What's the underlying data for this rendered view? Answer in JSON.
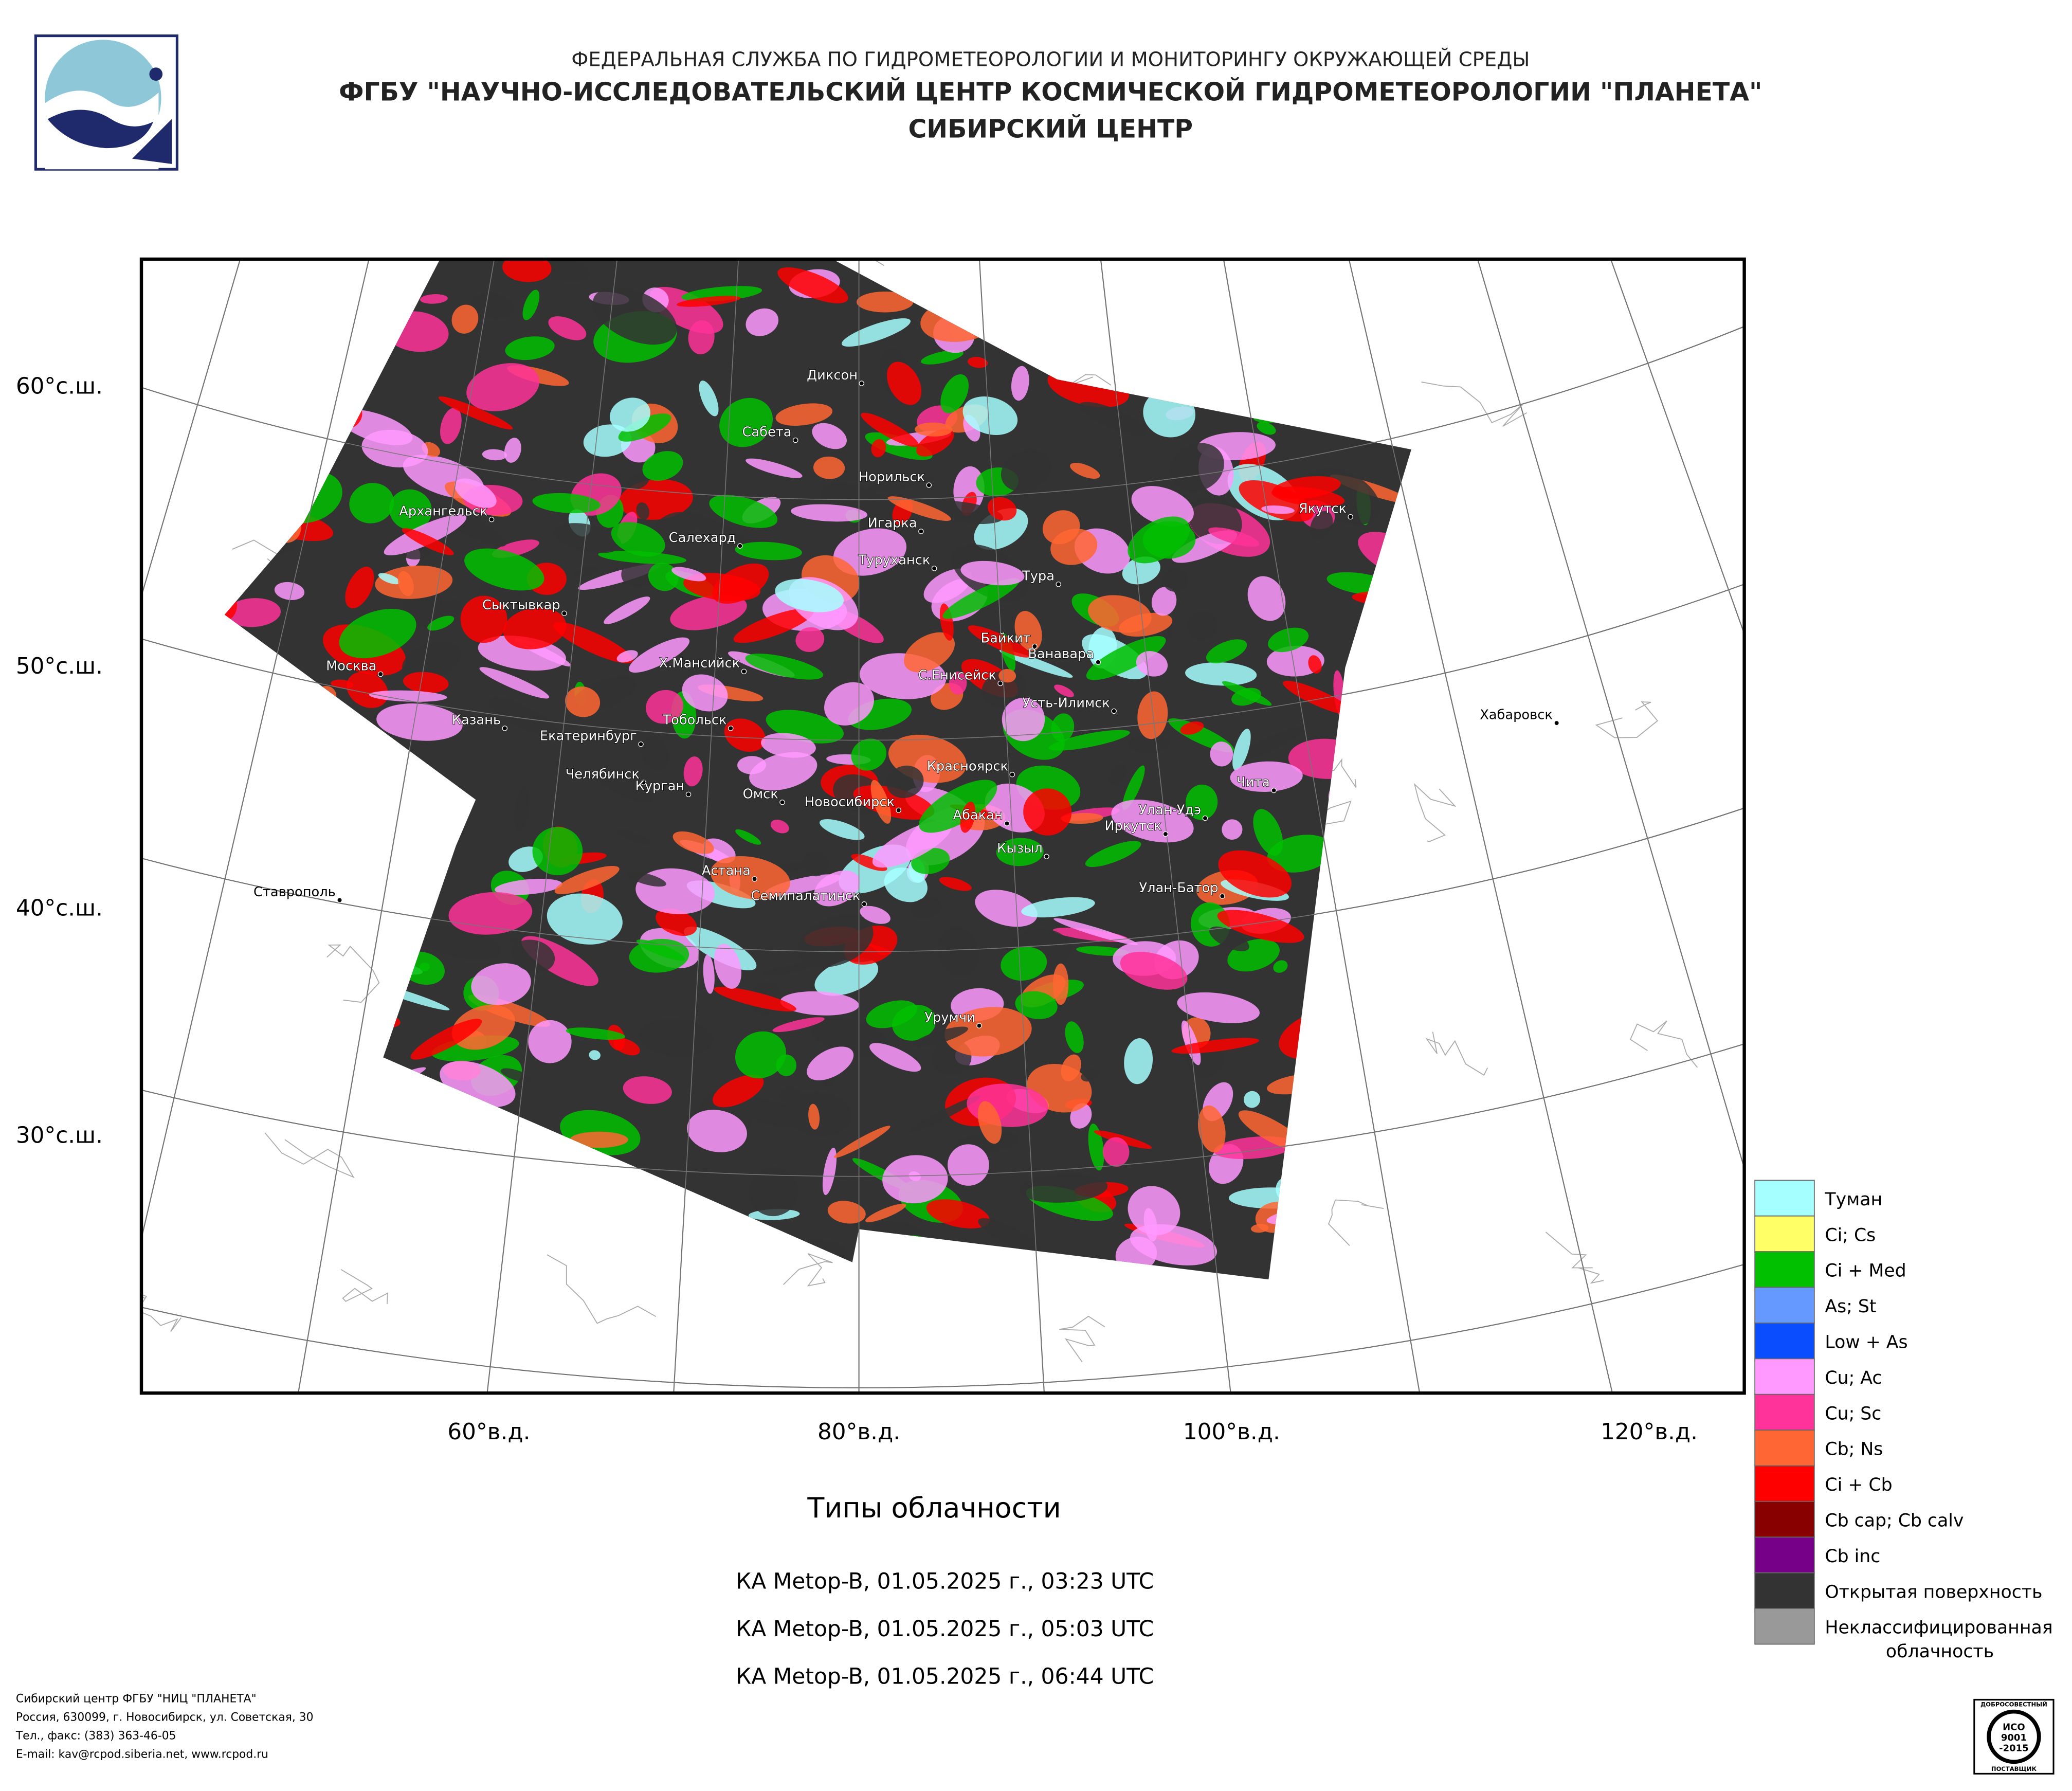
{
  "header": {
    "lines": [
      "ФЕДЕРАЛЬНАЯ СЛУЖБА ПО ГИДРОМЕТЕОРОЛОГИИ И МОНИТОРИНГУ ОКРУЖАЮЩЕЙ СРЕДЫ",
      "ФГБУ \"НАУЧНО-ИССЛЕДОВАТЕЛЬСКИЙ ЦЕНТР КОСМИЧЕСКОЙ ГИДРОМЕТЕОРОЛОГИИ \"ПЛАНЕТА\"",
      "СИБИРСКИЙ ЦЕНТР"
    ]
  },
  "map": {
    "lat_labels": [
      "60°с.ш.",
      "50°с.ш.",
      "40°с.ш.",
      "30°с.ш."
    ],
    "lon_labels": [
      "60°в.д.",
      "80°в.д.",
      "100°в.д.",
      "120°в.д."
    ],
    "cities": [
      "Диксон",
      "Сабета",
      "Норильск",
      "Архангельск",
      "Салехард",
      "Игарка",
      "Туруханск",
      "Тура",
      "Якутск",
      "Сыктывкар",
      "Байкит",
      "Ванавара",
      "Москва",
      "Х.Мансийск",
      "С.Енисейск",
      "Хабаровск",
      "Усть-Илимск",
      "Казань",
      "Екатеринбург",
      "Тобольск",
      "Красноярск",
      "Чита",
      "Челябинск",
      "Курган",
      "Омск",
      "Новосибирск",
      "Абакан",
      "Улан-Удэ",
      "Иркутск",
      "Кызыл",
      "Ставрополь",
      "Астана",
      "Улан-Батор",
      "Семипалатинск",
      "Урумчи"
    ]
  },
  "legend": {
    "items": [
      {
        "label": "Туман",
        "color": "#a6ffff"
      },
      {
        "label": "Ci; Cs",
        "color": "#ffff66"
      },
      {
        "label": "Ci + Med",
        "color": "#00c000"
      },
      {
        "label": "As; St",
        "color": "#6699ff"
      },
      {
        "label": "Low + As",
        "color": "#0a4dff"
      },
      {
        "label": "Cu; Ac",
        "color": "#ff99ff"
      },
      {
        "label": "Cu; Sc",
        "color": "#ff3399"
      },
      {
        "label": "Cb; Ns",
        "color": "#ff6633"
      },
      {
        "label": "Ci + Cb",
        "color": "#ff0000"
      },
      {
        "label": "Cb cap; Cb calv",
        "color": "#880000"
      },
      {
        "label": "Cb inc",
        "color": "#770088"
      },
      {
        "label": "Открытая поверхность",
        "color": "#333333"
      },
      {
        "label": "Неклассифицированная облачность",
        "color": "#999999"
      }
    ]
  },
  "caption": {
    "title": "Типы облачности",
    "passes": [
      "КА Metop-B, 01.05.2025 г., 03:23 UTC",
      "КА Metop-B, 01.05.2025 г., 05:03 UTC",
      "КА Metop-B, 01.05.2025 г., 06:44 UTC"
    ]
  },
  "footer": {
    "lines": [
      "Сибирский центр ФГБУ \"НИЦ \"ПЛАНЕТА\"",
      "Россия, 630099, г. Новосибирск, ул. Советская, 30",
      "Тел., факс: (383) 363-46-05",
      "E-mail: kav@rcpod.siberia.net, www.rcpod.ru"
    ]
  },
  "badge": {
    "lines": [
      "ДОБРОСОВЕСТНЫЙ",
      "ИСО",
      "9001",
      "-2015",
      "ПОСТАВЩИК"
    ]
  }
}
